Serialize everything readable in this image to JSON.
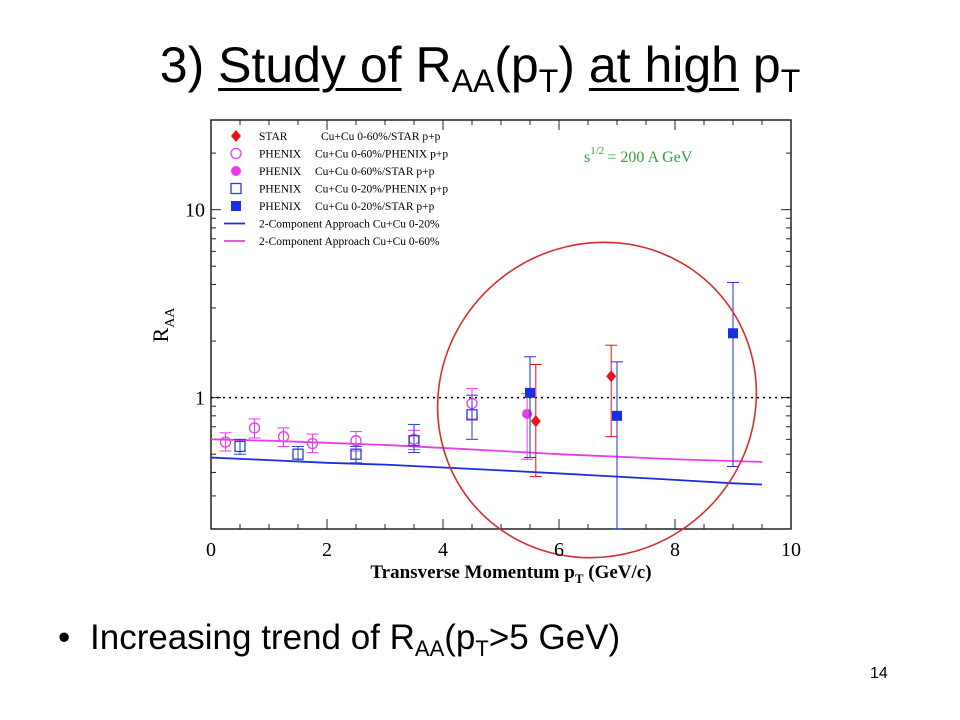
{
  "slide": {
    "title": {
      "prefix": "3) ",
      "study_of": "Study of",
      "r": "R",
      "aa_sub": "AA",
      "paren_open_p": "(p",
      "t_sub": "T",
      "paren_close": ")",
      "space": " ",
      "at_high": "at high",
      "p": " p",
      "t_sub2": "T"
    },
    "bullet": {
      "dot": "•",
      "text_before": "Increasing trend of R",
      "aa_sub": "AA",
      "p_open": "(p",
      "t_sub": "T",
      "text_after": ">5 GeV)"
    },
    "page_number": "14"
  },
  "chart_data": {
    "type": "scatter",
    "xlabel": "Transverse Momentum p",
    "xlabel_sub": "T",
    "xlabel_unit": " (GeV/c)",
    "ylabel": "R",
    "ylabel_sub": "AA",
    "xlim": [
      0,
      10
    ],
    "ylim": [
      0.2,
      30
    ],
    "yscale": "log",
    "x_ticks": [
      "0",
      "2",
      "4",
      "6",
      "8",
      "10"
    ],
    "x_tick_values": [
      0,
      2,
      4,
      6,
      8,
      10
    ],
    "y_ticks": [
      "1",
      "10"
    ],
    "y_tick_values": [
      1,
      10
    ],
    "reference_line": 1,
    "annotation": {
      "s": "s",
      "exp": "1/2",
      "rest": "= 200 A GeV",
      "color": "#2e9e3a"
    },
    "legend_position": "top-left",
    "highlight_ellipse_color": "#d42f2f",
    "series": [
      {
        "name": "STAR",
        "name2": "Cu+Cu 0-60%/STAR p+p",
        "marker": "diamond-filled",
        "color": "#e8131b",
        "x": [
          5.6,
          6.9
        ],
        "y": [
          0.75,
          1.3
        ],
        "yerr_low": [
          0.38,
          0.62
        ],
        "yerr_high": [
          1.5,
          1.9
        ]
      },
      {
        "name": "PHENIX",
        "name2": "Cu+Cu 0-60%/PHENIX p+p",
        "marker": "circle-open",
        "color": "#e83ee8",
        "x": [
          0.25,
          0.75,
          1.25,
          1.75,
          2.5,
          3.5,
          4.5
        ],
        "y": [
          0.58,
          0.69,
          0.62,
          0.57,
          0.59,
          0.6,
          0.93
        ],
        "yerr_low": [
          0.52,
          0.61,
          0.55,
          0.51,
          0.52,
          0.53,
          0.77
        ],
        "yerr_high": [
          0.65,
          0.77,
          0.69,
          0.64,
          0.66,
          0.67,
          1.12
        ]
      },
      {
        "name": "PHENIX",
        "name2": "Cu+Cu 0-60%/STAR p+p",
        "marker": "circle-filled",
        "color": "#e83ee8",
        "x": [
          5.45
        ],
        "y": [
          0.82
        ],
        "yerr_low": [
          0.47
        ],
        "yerr_high": [
          1.05
        ]
      },
      {
        "name": "PHENIX",
        "name2": "Cu+Cu 0-20%/PHENIX p+p",
        "marker": "square-open",
        "color": "#2a3fd8",
        "x": [
          0.5,
          1.5,
          2.5,
          3.5,
          4.5
        ],
        "y": [
          0.55,
          0.5,
          0.5,
          0.59,
          0.81
        ],
        "yerr_low": [
          0.5,
          0.46,
          0.45,
          0.51,
          0.6
        ],
        "yerr_high": [
          0.6,
          0.55,
          0.55,
          0.72,
          1.03
        ]
      },
      {
        "name": "PHENIX",
        "name2": "Cu+Cu 0-20%/STAR p+p",
        "marker": "square-filled",
        "color": "#1a2fe0",
        "x": [
          5.5,
          7.0,
          9.0
        ],
        "y": [
          1.06,
          0.8,
          2.2
        ],
        "yerr_low": [
          0.48,
          0.2,
          0.43
        ],
        "yerr_high": [
          1.65,
          1.55,
          4.1
        ]
      },
      {
        "name": "2-Component Approach",
        "name2": "Cu+Cu 0-20%",
        "marker": "line",
        "color": "#1a2fe0",
        "x": [
          0,
          1,
          2,
          3,
          4,
          5,
          6,
          7,
          8,
          9,
          9.5
        ],
        "y": [
          0.48,
          0.465,
          0.45,
          0.44,
          0.425,
          0.41,
          0.395,
          0.38,
          0.365,
          0.35,
          0.345
        ]
      },
      {
        "name": "2-Component Approach",
        "name2": "Cu+Cu 0-60%",
        "marker": "line",
        "color": "#e83ee8",
        "x": [
          0,
          1,
          2,
          3,
          4,
          5,
          6,
          7,
          8,
          9,
          9.5
        ],
        "y": [
          0.6,
          0.59,
          0.575,
          0.56,
          0.54,
          0.52,
          0.5,
          0.485,
          0.47,
          0.46,
          0.455
        ]
      }
    ]
  }
}
